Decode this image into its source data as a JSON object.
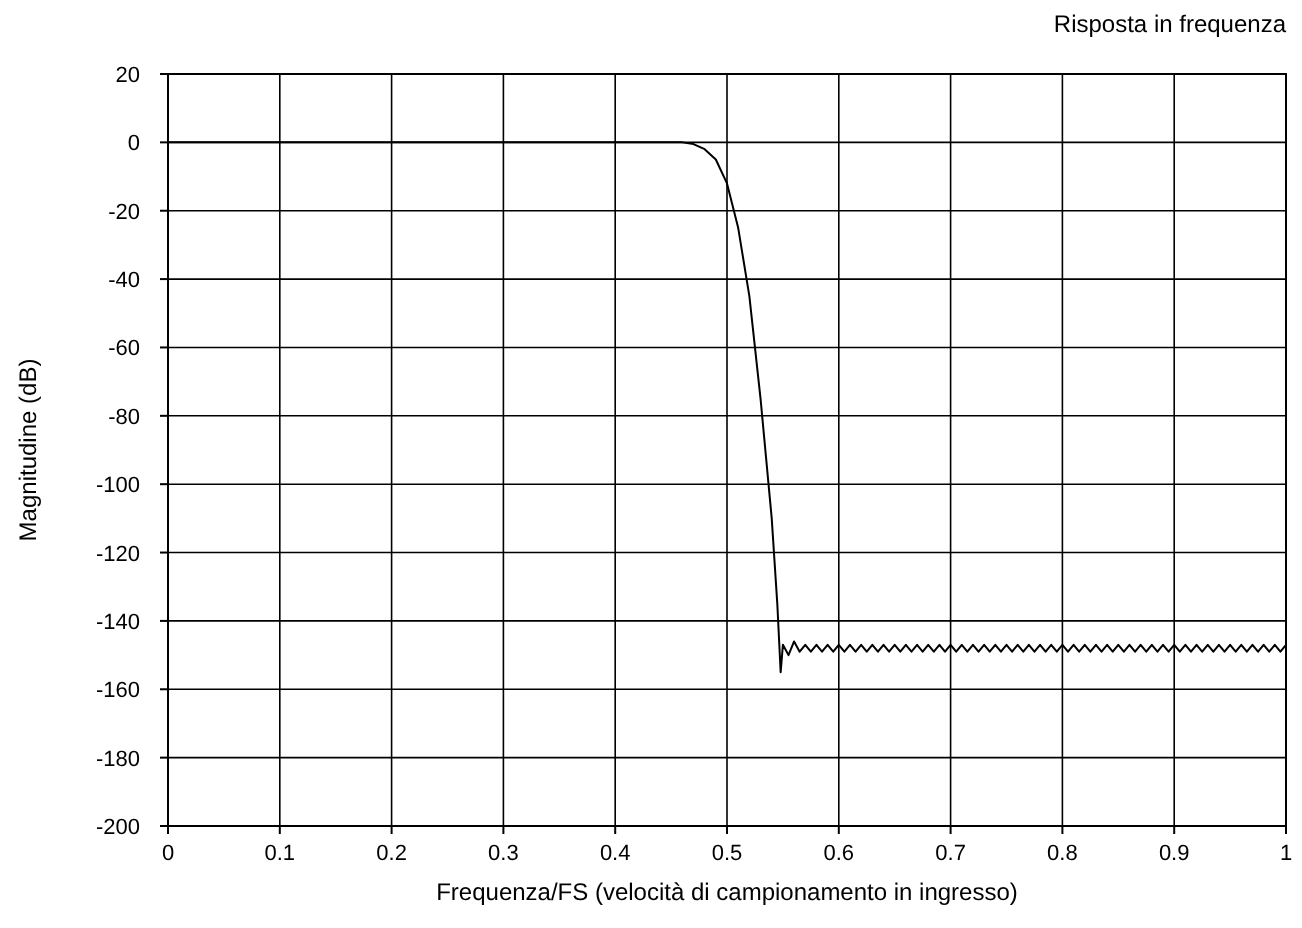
{
  "chart_data": {
    "type": "line",
    "title": "Risposta in frequenza",
    "xlabel": "Frequenza/FS (velocità di campionamento in ingresso)",
    "ylabel": "Magnitudine (dB)",
    "xlim": [
      0,
      1
    ],
    "ylim": [
      -200,
      20
    ],
    "xticks": [
      0,
      0.1,
      0.2,
      0.3,
      0.4,
      0.5,
      0.6,
      0.7,
      0.8,
      0.9,
      1
    ],
    "yticks": [
      -200,
      -180,
      -160,
      -140,
      -120,
      -100,
      -80,
      -60,
      -40,
      -20,
      0,
      20
    ],
    "grid": true,
    "marker": "none",
    "line_style": "solid",
    "series": [
      {
        "color": "#000000",
        "x": [
          0,
          0.1,
          0.2,
          0.3,
          0.4,
          0.45,
          0.46,
          0.47,
          0.48,
          0.49,
          0.5,
          0.51,
          0.52,
          0.53,
          0.54,
          0.545,
          0.548,
          0.55,
          0.555,
          0.56,
          0.565,
          0.57,
          0.575,
          0.58,
          0.585,
          0.59,
          0.595,
          0.6,
          0.605,
          0.61,
          0.615,
          0.62,
          0.625,
          0.63,
          0.635,
          0.64,
          0.645,
          0.65,
          0.655,
          0.66,
          0.665,
          0.67,
          0.675,
          0.68,
          0.685,
          0.69,
          0.695,
          0.7,
          0.705,
          0.71,
          0.715,
          0.72,
          0.725,
          0.73,
          0.735,
          0.74,
          0.745,
          0.75,
          0.755,
          0.76,
          0.765,
          0.77,
          0.775,
          0.78,
          0.785,
          0.79,
          0.795,
          0.8,
          0.805,
          0.81,
          0.815,
          0.82,
          0.825,
          0.83,
          0.835,
          0.84,
          0.845,
          0.85,
          0.855,
          0.86,
          0.865,
          0.87,
          0.875,
          0.88,
          0.885,
          0.89,
          0.895,
          0.9,
          0.905,
          0.91,
          0.915,
          0.92,
          0.925,
          0.93,
          0.935,
          0.94,
          0.945,
          0.95,
          0.955,
          0.96,
          0.965,
          0.97,
          0.975,
          0.98,
          0.985,
          0.99,
          0.995,
          1
        ],
        "values": [
          0,
          0,
          0,
          0,
          0,
          0,
          0,
          -0.5,
          -2,
          -5,
          -12,
          -25,
          -45,
          -75,
          -110,
          -135,
          -155,
          -147,
          -150,
          -146,
          -149,
          -147,
          -149,
          -147,
          -149,
          -147,
          -149,
          -147,
          -149,
          -147,
          -149,
          -147,
          -149,
          -147,
          -149,
          -147,
          -149,
          -147,
          -149,
          -147,
          -149,
          -147,
          -149,
          -147,
          -149,
          -147,
          -149,
          -147,
          -149,
          -147,
          -149,
          -147,
          -149,
          -147,
          -149,
          -147,
          -149,
          -147,
          -149,
          -147,
          -149,
          -147,
          -149,
          -147,
          -149,
          -147,
          -149,
          -147,
          -149,
          -147,
          -149,
          -147,
          -149,
          -147,
          -149,
          -147,
          -149,
          -147,
          -149,
          -147,
          -149,
          -147,
          -149,
          -147,
          -149,
          -147,
          -149,
          -147,
          -149,
          -147,
          -149,
          -147,
          -149,
          -147,
          -149,
          -147,
          -149,
          -147,
          -149,
          -147,
          -149,
          -147,
          -149,
          -147,
          -149,
          -147,
          -149,
          -147
        ]
      }
    ]
  }
}
